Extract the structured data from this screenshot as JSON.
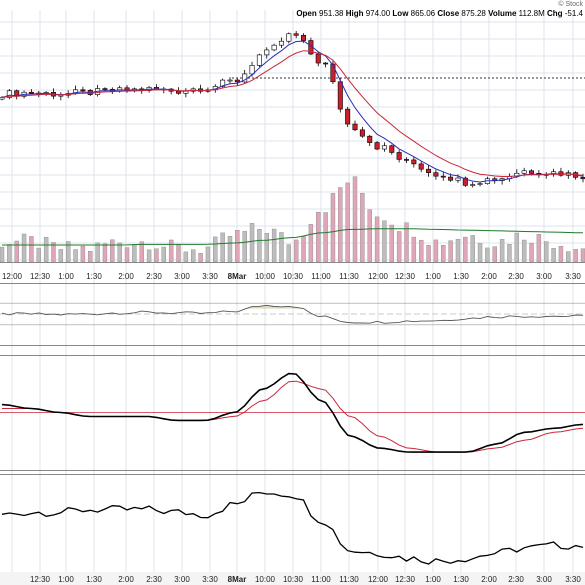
{
  "header": {
    "brand": "© Stock",
    "open_label": "Open",
    "open": "951.38",
    "high_label": "High",
    "high": "974.00",
    "low_label": "Low",
    "low": "865.06",
    "close_label": "Close",
    "close": "875.28",
    "volume_label": "Volume",
    "volume": "112.8M",
    "chg_label": "Chg",
    "chg": "-51.4"
  },
  "colors": {
    "up": "#ffffff",
    "down": "#cc1f2b",
    "grid": "#dce4ec",
    "ma_fast": "#2b2fb8",
    "ma_slow": "#c8283a",
    "volume_ma": "#1f7a2e",
    "volume_bar": "#bdbdbd",
    "volume_down": "#e0a6b8",
    "oscillator": "#555555",
    "macd_line": "#000000",
    "signal_line": "#c8283a"
  },
  "chart_data": [
    {
      "type": "line",
      "panel": "price",
      "x": [
        "12:00",
        "12:30",
        "1:00",
        "1:30",
        "2:00",
        "2:30",
        "3:00",
        "3:30",
        "8Mar",
        "10:00",
        "10:30",
        "11:00",
        "11:30",
        "12:00",
        "12:30",
        "1:00",
        "1:30",
        "2:00",
        "2:30",
        "3:00",
        "3:30"
      ],
      "series": [
        {
          "values": [
            935,
            936,
            935,
            936,
            937,
            938,
            937,
            939,
            943,
            960,
            972,
            955,
            915,
            902,
            892,
            885,
            880,
            882,
            887,
            886,
            884
          ]
        }
      ],
      "reference_level": 945
    },
    {
      "type": "bar",
      "panel": "volume",
      "values": [
        3,
        3,
        2,
        2,
        3,
        3,
        2,
        2,
        4,
        5,
        3,
        8,
        12,
        7,
        5,
        3,
        4,
        3,
        4,
        3,
        2
      ],
      "moving_average": [
        2.5,
        2.5,
        2.5,
        2.5,
        2.5,
        2.6,
        2.6,
        2.6,
        2.8,
        3.2,
        3.6,
        4.3,
        4.8,
        4.9,
        4.9,
        4.8,
        4.7,
        4.6,
        4.5,
        4.4,
        4.3
      ]
    },
    {
      "type": "line",
      "panel": "oscillator",
      "values": [
        50,
        50,
        49,
        50,
        52,
        53,
        52,
        51,
        55,
        66,
        65,
        45,
        35,
        35,
        37,
        38,
        42,
        45,
        46,
        46,
        46
      ],
      "thresholds": [
        70,
        30
      ]
    },
    {
      "type": "line",
      "panel": "macd",
      "series": [
        {
          "values": [
            2,
            1,
            0,
            -1,
            -1,
            -1,
            -2,
            -2,
            0,
            6,
            10,
            3,
            -6,
            -9,
            -10,
            -10,
            -10,
            -8,
            -5,
            -4,
            -3
          ]
        },
        {
          "values": [
            1,
            1,
            0,
            -1,
            -1,
            -1,
            -2,
            -2,
            -1,
            3,
            8,
            6,
            -1,
            -6,
            -9,
            -10,
            -10,
            -9,
            -7,
            -5,
            -4
          ]
        }
      ],
      "zero_line": 0
    },
    {
      "type": "line",
      "panel": "cumulative",
      "values": [
        0,
        1,
        1,
        2,
        2,
        2,
        1,
        0,
        4,
        9,
        8,
        -2,
        -14,
        -15,
        -17,
        -18,
        -17,
        -15,
        -13,
        -12,
        -12
      ]
    }
  ],
  "x_axis": {
    "top_ticks": [
      "12:00",
      "12:30",
      "1:00",
      "1:30",
      "2:00",
      "2:30",
      "3:00",
      "3:30",
      "8Mar",
      "10:00",
      "10:30",
      "11:00",
      "11:30",
      "12:00",
      "12:30",
      "1:00",
      "1:30",
      "2:00",
      "2:30",
      "3:00",
      "3:30"
    ],
    "bottom_ticks": [
      "12:30",
      "1:00",
      "1:30",
      "2:00",
      "2:30",
      "3:00",
      "3:30",
      "8Mar",
      "10:00",
      "10:30",
      "11:00",
      "11:30",
      "12:00",
      "12:30",
      "1:00",
      "1:30",
      "2:00",
      "2:30",
      "3:00",
      "3:30"
    ],
    "bold_tick": "8Mar"
  }
}
